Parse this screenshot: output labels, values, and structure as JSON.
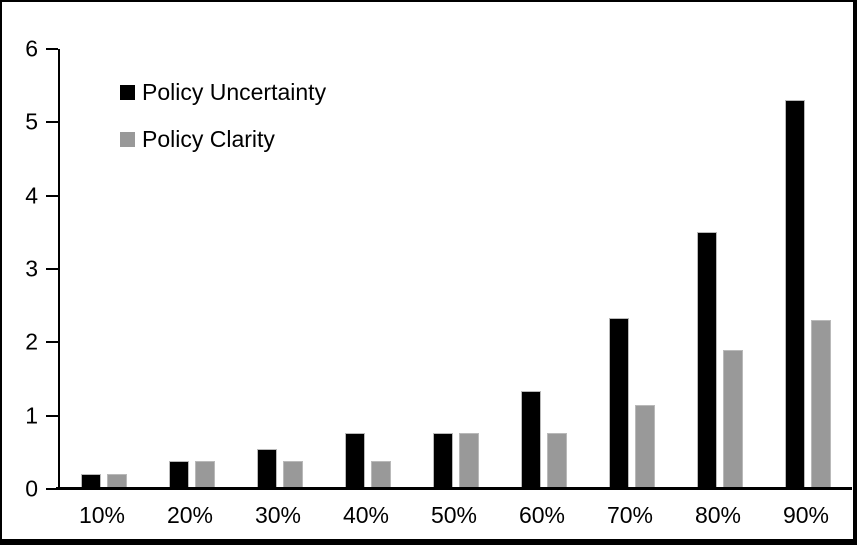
{
  "chart_data": {
    "type": "bar",
    "title": "",
    "xlabel": "",
    "ylabel": "",
    "categories": [
      "10%",
      "20%",
      "30%",
      "40%",
      "50%",
      "60%",
      "70%",
      "80%",
      "90%"
    ],
    "series": [
      {
        "name": "Policy Uncertainty",
        "color": "#000000",
        "values": [
          0.2,
          0.38,
          0.55,
          0.76,
          0.77,
          1.33,
          2.33,
          3.5,
          5.3
        ]
      },
      {
        "name": "Policy Clarity",
        "color": "#999999",
        "values": [
          0.2,
          0.38,
          0.38,
          0.38,
          0.76,
          0.77,
          1.15,
          1.9,
          2.3
        ]
      }
    ],
    "ylim": [
      0,
      6
    ],
    "yticks": [
      0,
      1,
      2,
      3,
      4,
      5,
      6
    ],
    "grid": false,
    "legend_position": "top-left-inside"
  },
  "frame": {
    "background": "#ffffff",
    "border_color": "#000000"
  }
}
